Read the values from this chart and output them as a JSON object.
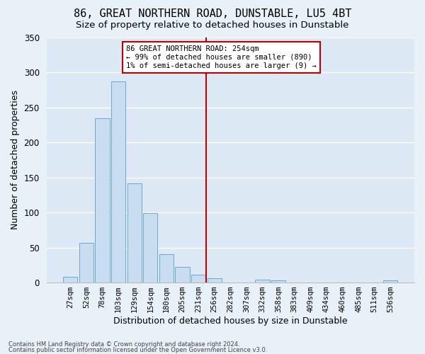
{
  "title": "86, GREAT NORTHERN ROAD, DUNSTABLE, LU5 4BT",
  "subtitle": "Size of property relative to detached houses in Dunstable",
  "xlabel": "Distribution of detached houses by size in Dunstable",
  "ylabel": "Number of detached properties",
  "bar_labels": [
    "27sqm",
    "52sqm",
    "78sqm",
    "103sqm",
    "129sqm",
    "154sqm",
    "180sqm",
    "205sqm",
    "231sqm",
    "256sqm",
    "282sqm",
    "307sqm",
    "332sqm",
    "358sqm",
    "383sqm",
    "409sqm",
    "434sqm",
    "460sqm",
    "485sqm",
    "511sqm",
    "536sqm"
  ],
  "bar_values": [
    8,
    57,
    234,
    287,
    141,
    99,
    40,
    22,
    11,
    6,
    0,
    0,
    4,
    3,
    0,
    0,
    0,
    0,
    0,
    0,
    3
  ],
  "bar_color": "#c9ddf0",
  "bar_edge_color": "#6aaad4",
  "marker_bin_index": 9,
  "marker_line_color": "#c00000",
  "annotation_text": "86 GREAT NORTHERN ROAD: 254sqm\n← 99% of detached houses are smaller (890)\n1% of semi-detached houses are larger (9) →",
  "annotation_box_color": "#c00000",
  "ylim": [
    0,
    350
  ],
  "yticks": [
    0,
    50,
    100,
    150,
    200,
    250,
    300,
    350
  ],
  "background_color": "#dce9f5",
  "grid_color": "#ffffff",
  "fig_bg_color": "#e8f0f8",
  "footer_line1": "Contains HM Land Registry data © Crown copyright and database right 2024.",
  "footer_line2": "Contains public sector information licensed under the Open Government Licence v3.0.",
  "title_fontsize": 11,
  "subtitle_fontsize": 9.5,
  "xlabel_fontsize": 9,
  "ylabel_fontsize": 9
}
